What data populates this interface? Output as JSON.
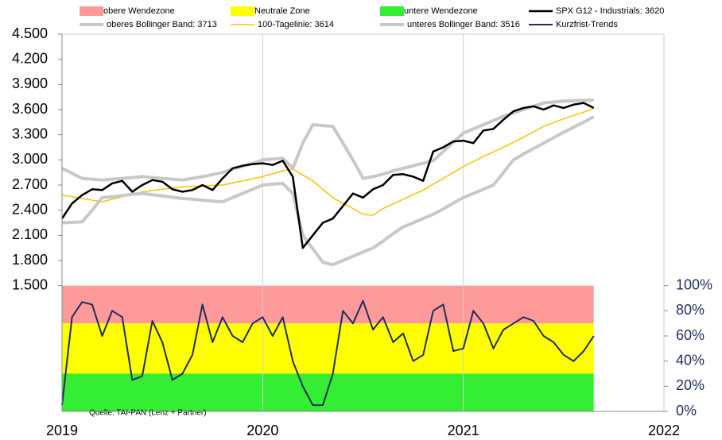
{
  "chart_data": {
    "type": "line",
    "source": "Quelle: TAI-PAN (Lenz + Partner)",
    "xlim": [
      2019,
      2022
    ],
    "xticks": [
      2019,
      2020,
      2021,
      2022
    ],
    "ylim": [
      0,
      4500
    ],
    "yticks": [
      {
        "value": 1500,
        "label": "1.500"
      },
      {
        "value": 1800,
        "label": "1.800"
      },
      {
        "value": 2100,
        "label": "2.100"
      },
      {
        "value": 2400,
        "label": "2.400"
      },
      {
        "value": 2700,
        "label": "2.700"
      },
      {
        "value": 3000,
        "label": "3.000"
      },
      {
        "value": 3300,
        "label": "3.300"
      },
      {
        "value": 3600,
        "label": "3.600"
      },
      {
        "value": 3900,
        "label": "3.900"
      },
      {
        "value": 4200,
        "label": "4.200"
      },
      {
        "value": 4500,
        "label": "4.500"
      }
    ],
    "y2lim": [
      0,
      100
    ],
    "y2ticks": [
      {
        "value": 0,
        "label": "0%"
      },
      {
        "value": 20,
        "label": "20%"
      },
      {
        "value": 40,
        "label": "40%"
      },
      {
        "value": 60,
        "label": "60%"
      },
      {
        "value": 80,
        "label": "80%"
      },
      {
        "value": 100,
        "label": "100%"
      }
    ],
    "grid": "x",
    "zones": [
      {
        "name": "obere Wendezone",
        "color": "#ff9a9a",
        "range": [
          70,
          100
        ]
      },
      {
        "name": "Neutrale Zone",
        "color": "#ffff00",
        "range": [
          30,
          70
        ]
      },
      {
        "name": "untere Wendezone",
        "color": "#33ee33",
        "range": [
          0,
          30
        ]
      }
    ],
    "x": [
      2019.0,
      2019.05,
      2019.1,
      2019.15,
      2019.2,
      2019.25,
      2019.3,
      2019.35,
      2019.4,
      2019.45,
      2019.5,
      2019.55,
      2019.6,
      2019.65,
      2019.7,
      2019.75,
      2019.8,
      2019.85,
      2019.9,
      2019.95,
      2020.0,
      2020.05,
      2020.1,
      2020.15,
      2020.2,
      2020.25,
      2020.3,
      2020.35,
      2020.4,
      2020.45,
      2020.5,
      2020.55,
      2020.6,
      2020.65,
      2020.7,
      2020.75,
      2020.8,
      2020.85,
      2020.9,
      2020.95,
      2021.0,
      2021.05,
      2021.1,
      2021.15,
      2021.2,
      2021.25,
      2021.3,
      2021.35,
      2021.4,
      2021.45,
      2021.5,
      2021.55,
      2021.6,
      2021.65
    ],
    "series": [
      {
        "name": "oberes Bollinger Band: 3713",
        "color": "#c8c8c8",
        "width": 4,
        "values": [
          2900,
          2840,
          2780,
          2770,
          2760,
          2770,
          2780,
          2790,
          2800,
          2790,
          2780,
          2770,
          2760,
          2780,
          2800,
          2825,
          2850,
          2890,
          2925,
          2960,
          3000,
          3010,
          3020,
          2900,
          3200,
          3420,
          3410,
          3400,
          3200,
          3000,
          2780,
          2800,
          2830,
          2870,
          2900,
          2930,
          2960,
          2990,
          3100,
          3210,
          3320,
          3370,
          3420,
          3470,
          3520,
          3560,
          3600,
          3640,
          3680,
          3690,
          3700,
          3705,
          3710,
          3713
        ]
      },
      {
        "name": "100-Tagelinie: 3614",
        "color": "#ffc000",
        "width": 1.5,
        "values": [
          2580,
          2560,
          2540,
          2520,
          2500,
          2530,
          2560,
          2590,
          2620,
          2635,
          2650,
          2665,
          2680,
          2685,
          2690,
          2695,
          2700,
          2725,
          2750,
          2775,
          2800,
          2835,
          2870,
          2890,
          2820,
          2750,
          2650,
          2550,
          2480,
          2420,
          2350,
          2340,
          2420,
          2475,
          2530,
          2585,
          2640,
          2710,
          2780,
          2850,
          2920,
          2980,
          3040,
          3095,
          3150,
          3210,
          3270,
          3335,
          3400,
          3445,
          3490,
          3530,
          3570,
          3614
        ]
      },
      {
        "name": "unteres Bollinger Band: 3516",
        "color": "#c8c8c8",
        "width": 4,
        "values": [
          2250,
          2255,
          2260,
          2400,
          2550,
          2560,
          2575,
          2590,
          2600,
          2585,
          2570,
          2555,
          2540,
          2530,
          2520,
          2510,
          2500,
          2550,
          2600,
          2650,
          2700,
          2710,
          2720,
          2600,
          2100,
          1940,
          1780,
          1750,
          1800,
          1850,
          1900,
          1950,
          2030,
          2120,
          2200,
          2250,
          2300,
          2350,
          2415,
          2485,
          2550,
          2600,
          2650,
          2700,
          2850,
          3000,
          3070,
          3135,
          3200,
          3265,
          3330,
          3390,
          3450,
          3516
        ]
      },
      {
        "name": "SPX G12 - Industrials: 3620",
        "color": "#000000",
        "width": 2.5,
        "values": [
          2300,
          2480,
          2580,
          2650,
          2640,
          2720,
          2750,
          2620,
          2700,
          2760,
          2740,
          2650,
          2620,
          2640,
          2700,
          2640,
          2780,
          2900,
          2930,
          2950,
          2960,
          2940,
          2990,
          2800,
          1950,
          2100,
          2250,
          2300,
          2450,
          2600,
          2550,
          2650,
          2700,
          2820,
          2830,
          2800,
          2750,
          3100,
          3150,
          3220,
          3230,
          3200,
          3350,
          3370,
          3480,
          3580,
          3620,
          3640,
          3600,
          3650,
          3620,
          3660,
          3680,
          3620
        ]
      },
      {
        "name": "Kurzfrist-Trends",
        "color": "#1f2d5a",
        "width": 2,
        "axis": "y2",
        "values": [
          5,
          75,
          87,
          85,
          60,
          80,
          75,
          25,
          28,
          72,
          55,
          25,
          30,
          45,
          85,
          55,
          75,
          60,
          55,
          70,
          75,
          60,
          75,
          40,
          20,
          5,
          5,
          30,
          80,
          70,
          88,
          65,
          75,
          55,
          62,
          40,
          45,
          80,
          85,
          48,
          50,
          80,
          70,
          50,
          65,
          70,
          75,
          72,
          60,
          55,
          45,
          40,
          48,
          60
        ]
      }
    ]
  }
}
